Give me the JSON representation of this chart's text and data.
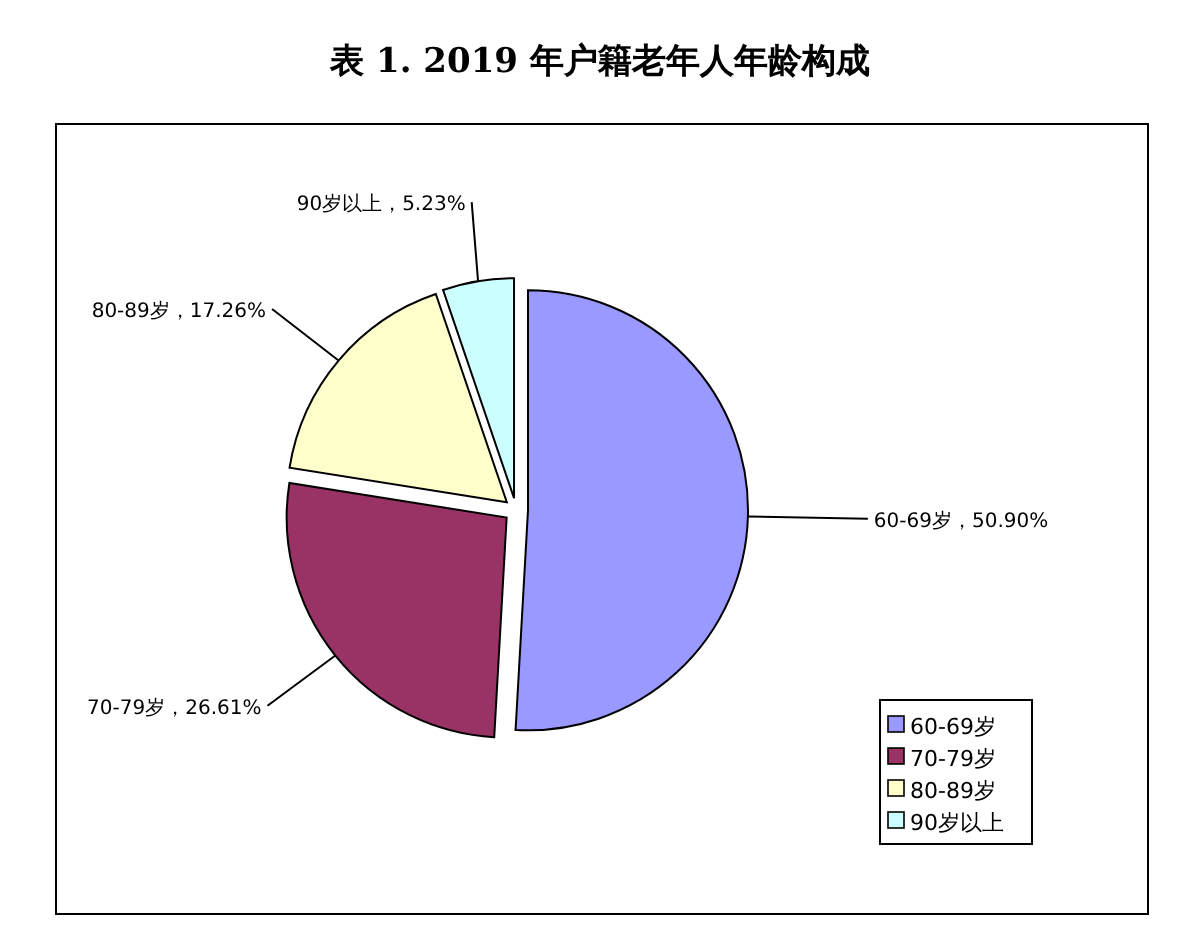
{
  "chart_data": {
    "type": "pie",
    "title": "表 1. 2019 年户籍老年人年龄构成",
    "categories": [
      "60-69岁",
      "70-79岁",
      "80-89岁",
      "90岁以上"
    ],
    "values": [
      50.9,
      26.61,
      17.26,
      5.23
    ],
    "colors": [
      "#9999ff",
      "#993366",
      "#ffffcc",
      "#ccffff"
    ],
    "value_labels": [
      "60-69岁，50.90%",
      "70-79岁，26.61%",
      "80-89岁，17.26%",
      "90岁以上，5.23%"
    ],
    "legend": "bottom right"
  }
}
